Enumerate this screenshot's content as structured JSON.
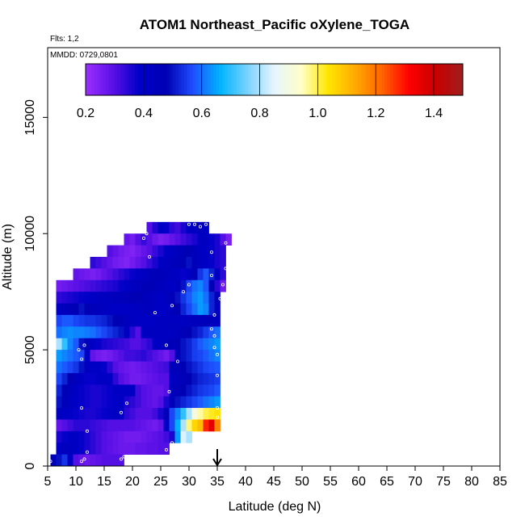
{
  "chart_data": {
    "type": "heatmap",
    "title": "ATOM1 Northeast_Pacific oXylene_TOGA",
    "flights_note": "Flts: 1,2",
    "date_note": "MMDD: 0729,0801",
    "xlabel": "Latitude (deg N)",
    "ylabel": "Altitude (m)",
    "xlim": [
      5,
      85
    ],
    "ylim": [
      0,
      18000
    ],
    "x_ticks": [
      5,
      10,
      15,
      20,
      25,
      30,
      35,
      40,
      45,
      50,
      55,
      60,
      65,
      70,
      75,
      80,
      85
    ],
    "y_ticks": [
      0,
      5000,
      10000,
      15000
    ],
    "colorbar": {
      "range": [
        0.2,
        1.5
      ],
      "ticks": [
        0.2,
        0.4,
        0.6,
        0.8,
        1.0,
        1.2,
        1.4
      ],
      "tick_labels": [
        "0.2",
        "0.4",
        "0.6",
        "0.8",
        "1.0",
        "1.2",
        "1.4"
      ],
      "colors": [
        "#9b30ff",
        "#5a10e6",
        "#0000c8",
        "#0000b4",
        "#1e50ff",
        "#00b4ff",
        "#78d2ff",
        "#e6f5ff",
        "#ffffc8",
        "#ffe600",
        "#ffaa00",
        "#ff6400",
        "#ff0000",
        "#c80000",
        "#a01e1e"
      ]
    },
    "arrow_latitude": 35,
    "rows": [
      {
        "alt": 10000,
        "x0": 22.5,
        "x1": 33.5,
        "v": [
          0.3,
          0.35,
          0.4,
          0.38,
          0.34,
          0.32,
          0.36,
          0.4,
          0.42,
          0.45,
          0.4
        ]
      },
      {
        "alt": 9500,
        "x0": 18.5,
        "x1": 37.5,
        "v": [
          0.28,
          0.26,
          0.3,
          0.33,
          0.3,
          0.27,
          0.25,
          0.26,
          0.28,
          0.3,
          0.32,
          0.34,
          0.36,
          0.4,
          0.42,
          0.38,
          0.36,
          0.3,
          0.25
        ]
      },
      {
        "alt": 9000,
        "x0": 15.5,
        "x1": 36.5,
        "v": [
          0.3,
          0.28,
          0.26,
          0.25,
          0.24,
          0.26,
          0.28,
          0.3,
          0.33,
          0.36,
          0.4,
          0.42,
          0.44,
          0.46,
          0.48,
          0.45,
          0.42,
          0.4,
          0.38,
          0.36,
          0.34
        ]
      },
      {
        "alt": 8500,
        "x0": 12.5,
        "x1": 36.5,
        "v": [
          0.34,
          0.32,
          0.3,
          0.28,
          0.26,
          0.25,
          0.24,
          0.26,
          0.28,
          0.3,
          0.33,
          0.36,
          0.4,
          0.42,
          0.44,
          0.46,
          0.48,
          0.5,
          0.46,
          0.42,
          0.4,
          0.38,
          0.36,
          0.34
        ]
      },
      {
        "alt": 8000,
        "x0": 9.5,
        "x1": 36.5,
        "v": [
          0.28,
          0.27,
          0.26,
          0.25,
          0.26,
          0.28,
          0.3,
          0.32,
          0.34,
          0.36,
          0.38,
          0.4,
          0.42,
          0.44,
          0.46,
          0.45,
          0.44,
          0.42,
          0.4,
          0.38,
          0.4,
          0.46,
          0.54,
          0.58,
          0.52,
          0.42,
          0.34
        ]
      },
      {
        "alt": 7500,
        "x0": 6.5,
        "x1": 36.5,
        "v": [
          0.26,
          0.27,
          0.28,
          0.29,
          0.3,
          0.31,
          0.32,
          0.33,
          0.34,
          0.35,
          0.36,
          0.38,
          0.4,
          0.42,
          0.44,
          0.46,
          0.48,
          0.46,
          0.44,
          0.42,
          0.4,
          0.44,
          0.5,
          0.56,
          0.6,
          0.62,
          0.58,
          0.48,
          0.34,
          0.26
        ]
      },
      {
        "alt": 7000,
        "x0": 6.5,
        "x1": 35.5,
        "v": [
          0.34,
          0.35,
          0.36,
          0.37,
          0.38,
          0.39,
          0.4,
          0.41,
          0.42,
          0.43,
          0.44,
          0.45,
          0.46,
          0.47,
          0.48,
          0.46,
          0.44,
          0.42,
          0.4,
          0.42,
          0.46,
          0.5,
          0.54,
          0.58,
          0.62,
          0.64,
          0.6,
          0.52,
          0.44
        ]
      },
      {
        "alt": 6500,
        "x0": 6.5,
        "x1": 35.5,
        "v": [
          0.42,
          0.44,
          0.46,
          0.48,
          0.5,
          0.48,
          0.46,
          0.44,
          0.42,
          0.41,
          0.4,
          0.4,
          0.4,
          0.41,
          0.42,
          0.43,
          0.44,
          0.42,
          0.4,
          0.4,
          0.44,
          0.48,
          0.52,
          0.56,
          0.6,
          0.64,
          0.62,
          0.52,
          0.42
        ]
      },
      {
        "alt": 6000,
        "x0": 6.5,
        "x1": 35.5,
        "v": [
          0.56,
          0.58,
          0.58,
          0.56,
          0.55,
          0.54,
          0.54,
          0.53,
          0.52,
          0.5,
          0.48,
          0.46,
          0.44,
          0.42,
          0.4,
          0.4,
          0.4,
          0.41,
          0.42,
          0.42,
          0.42,
          0.42,
          0.42,
          0.43,
          0.44,
          0.44,
          0.45,
          0.44,
          0.42
        ]
      },
      {
        "alt": 5500,
        "x0": 6.5,
        "x1": 35.5,
        "v": [
          0.6,
          0.62,
          0.63,
          0.62,
          0.62,
          0.61,
          0.6,
          0.58,
          0.56,
          0.54,
          0.52,
          0.5,
          0.42,
          0.34,
          0.3,
          0.4,
          0.42,
          0.42,
          0.42,
          0.42,
          0.42,
          0.44,
          0.46,
          0.48,
          0.5,
          0.52,
          0.55,
          0.58,
          0.6
        ]
      },
      {
        "alt": 5000,
        "x0": 6.5,
        "x1": 35.5,
        "v": [
          0.8,
          0.7,
          0.62,
          0.58,
          0.5,
          0.44,
          0.4,
          0.38,
          0.36,
          0.35,
          0.34,
          0.33,
          0.32,
          0.3,
          0.3,
          0.32,
          0.34,
          0.4,
          0.42,
          0.44,
          0.46,
          0.48,
          0.5,
          0.52,
          0.55,
          0.58,
          0.6,
          0.62,
          0.64
        ]
      },
      {
        "alt": 4500,
        "x0": 6.5,
        "x1": 35.5,
        "v": [
          0.64,
          0.62,
          0.6,
          0.58,
          0.56,
          0.4,
          0.28,
          0.26,
          0.25,
          0.26,
          0.28,
          0.3,
          0.32,
          0.32,
          0.33,
          0.34,
          0.32,
          0.3,
          0.28,
          0.26,
          0.3,
          0.46,
          0.5,
          0.52,
          0.55,
          0.56,
          0.58,
          0.6,
          0.62
        ]
      },
      {
        "alt": 4000,
        "x0": 6.5,
        "x1": 35.5,
        "v": [
          0.6,
          0.58,
          0.56,
          0.54,
          0.5,
          0.42,
          0.4,
          0.4,
          0.38,
          0.34,
          0.3,
          0.28,
          0.27,
          0.26,
          0.27,
          0.28,
          0.29,
          0.3,
          0.31,
          0.32,
          0.44,
          0.46,
          0.48,
          0.5,
          0.52,
          0.54,
          0.56,
          0.57,
          0.58
        ]
      },
      {
        "alt": 3500,
        "x0": 6.5,
        "x1": 35.5,
        "v": [
          0.56,
          0.52,
          0.48,
          0.44,
          0.4,
          0.38,
          0.38,
          0.4,
          0.4,
          0.4,
          0.34,
          0.3,
          0.28,
          0.26,
          0.26,
          0.27,
          0.28,
          0.29,
          0.3,
          0.3,
          0.4,
          0.44,
          0.46,
          0.48,
          0.5,
          0.52,
          0.53,
          0.54,
          0.55
        ]
      },
      {
        "alt": 3000,
        "x0": 6.5,
        "x1": 35.5,
        "v": [
          0.52,
          0.48,
          0.44,
          0.4,
          0.38,
          0.37,
          0.36,
          0.36,
          0.37,
          0.38,
          0.4,
          0.4,
          0.4,
          0.4,
          0.32,
          0.3,
          0.29,
          0.28,
          0.28,
          0.3,
          0.44,
          0.46,
          0.48,
          0.5,
          0.52,
          0.54,
          0.55,
          0.56,
          0.58
        ]
      },
      {
        "alt": 2500,
        "x0": 6.5,
        "x1": 35.5,
        "v": [
          0.5,
          0.46,
          0.42,
          0.4,
          0.38,
          0.37,
          0.36,
          0.36,
          0.37,
          0.38,
          0.39,
          0.4,
          0.36,
          0.34,
          0.32,
          0.3,
          0.29,
          0.28,
          0.3,
          0.36,
          0.46,
          0.5,
          0.52,
          0.54,
          0.56,
          0.58,
          0.6,
          0.62,
          0.64
        ]
      },
      {
        "alt": 2000,
        "x0": 6.5,
        "x1": 35.5,
        "v": [
          0.42,
          0.4,
          0.39,
          0.38,
          0.37,
          0.36,
          0.36,
          0.37,
          0.38,
          0.39,
          0.4,
          0.4,
          0.34,
          0.32,
          0.3,
          0.3,
          0.3,
          0.32,
          0.36,
          0.46,
          0.56,
          0.62,
          0.7,
          0.8,
          0.9,
          0.96,
          1.0,
          1.02,
          1.04
        ]
      },
      {
        "alt": 1500,
        "x0": 6.5,
        "x1": 35.5,
        "v": [
          0.28,
          0.3,
          0.32,
          0.34,
          0.34,
          0.34,
          0.33,
          0.32,
          0.31,
          0.3,
          0.3,
          0.3,
          0.3,
          0.3,
          0.29,
          0.28,
          0.27,
          0.26,
          0.28,
          0.4,
          0.56,
          0.66,
          0.8,
          0.98,
          1.06,
          1.1,
          1.28,
          1.36,
          1.18
        ]
      },
      {
        "alt": 1000,
        "x0": 6.5,
        "x1": 30.5,
        "v": [
          0.36,
          0.38,
          0.4,
          0.4,
          0.38,
          0.36,
          0.34,
          0.32,
          0.3,
          0.29,
          0.28,
          0.27,
          0.26,
          0.26,
          0.26,
          0.27,
          0.28,
          0.29,
          0.3,
          0.32,
          0.36,
          0.64,
          0.84,
          0.8
        ]
      },
      {
        "alt": 500,
        "x0": 6.5,
        "x1": 26.5,
        "v": [
          0.4,
          0.42,
          0.42,
          0.4,
          0.38,
          0.36,
          0.34,
          0.32,
          0.3,
          0.29,
          0.28,
          0.27,
          0.27,
          0.27,
          0.28,
          0.28,
          0.29,
          0.29,
          0.3,
          0.3
        ]
      },
      {
        "alt": 0,
        "x0": 5.5,
        "x1": 18.5,
        "v": [
          0.44,
          0.5,
          0.54,
          0.4,
          0.3,
          0.28,
          0.27,
          0.28,
          0.29,
          0.3,
          0.3,
          0.3,
          0.3
        ]
      }
    ],
    "points": [
      [
        5.5,
        200
      ],
      [
        6,
        7900
      ],
      [
        11,
        200
      ],
      [
        11.5,
        300
      ],
      [
        12,
        600
      ],
      [
        12,
        1500
      ],
      [
        11,
        2500
      ],
      [
        11,
        4600
      ],
      [
        11.5,
        5200
      ],
      [
        10.5,
        5000
      ],
      [
        18,
        300
      ],
      [
        18.5,
        400
      ],
      [
        18,
        2300
      ],
      [
        19,
        2700
      ],
      [
        22,
        9800
      ],
      [
        22.5,
        10000
      ],
      [
        23,
        9000
      ],
      [
        24,
        6600
      ],
      [
        26,
        700
      ],
      [
        27,
        1000
      ],
      [
        26.5,
        3200
      ],
      [
        27,
        6900
      ],
      [
        26,
        5200
      ],
      [
        28,
        4500
      ],
      [
        29,
        7500
      ],
      [
        30,
        7800
      ],
      [
        30,
        10400
      ],
      [
        31,
        10400
      ],
      [
        32,
        10300
      ],
      [
        33,
        10400
      ],
      [
        34,
        9200
      ],
      [
        34,
        8200
      ],
      [
        34.5,
        6500
      ],
      [
        34,
        5900
      ],
      [
        34.5,
        5600
      ],
      [
        34.5,
        5100
      ],
      [
        35,
        4800
      ],
      [
        35,
        3900
      ],
      [
        35,
        2500
      ],
      [
        35,
        2100
      ],
      [
        36,
        7800
      ],
      [
        35.5,
        7200
      ],
      [
        36.5,
        8500
      ],
      [
        36.5,
        9600
      ]
    ]
  }
}
